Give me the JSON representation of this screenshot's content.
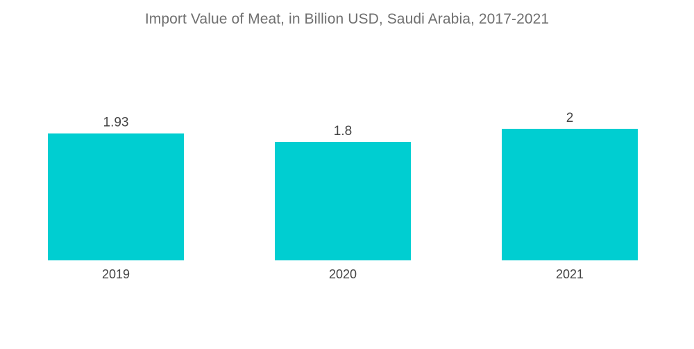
{
  "chart_data": {
    "type": "bar",
    "title": "Import Value of Meat, in Billion USD, Saudi Arabia, 2017-2021",
    "categories": [
      "2019",
      "2020",
      "2021"
    ],
    "values": [
      1.93,
      1.8,
      2
    ],
    "value_labels": [
      "1.93",
      "1.8",
      "2"
    ],
    "xlabel": "",
    "ylabel": "",
    "ylim": [
      0,
      2
    ],
    "grid": false,
    "legend": "none",
    "bar_color": "#00CED1"
  }
}
